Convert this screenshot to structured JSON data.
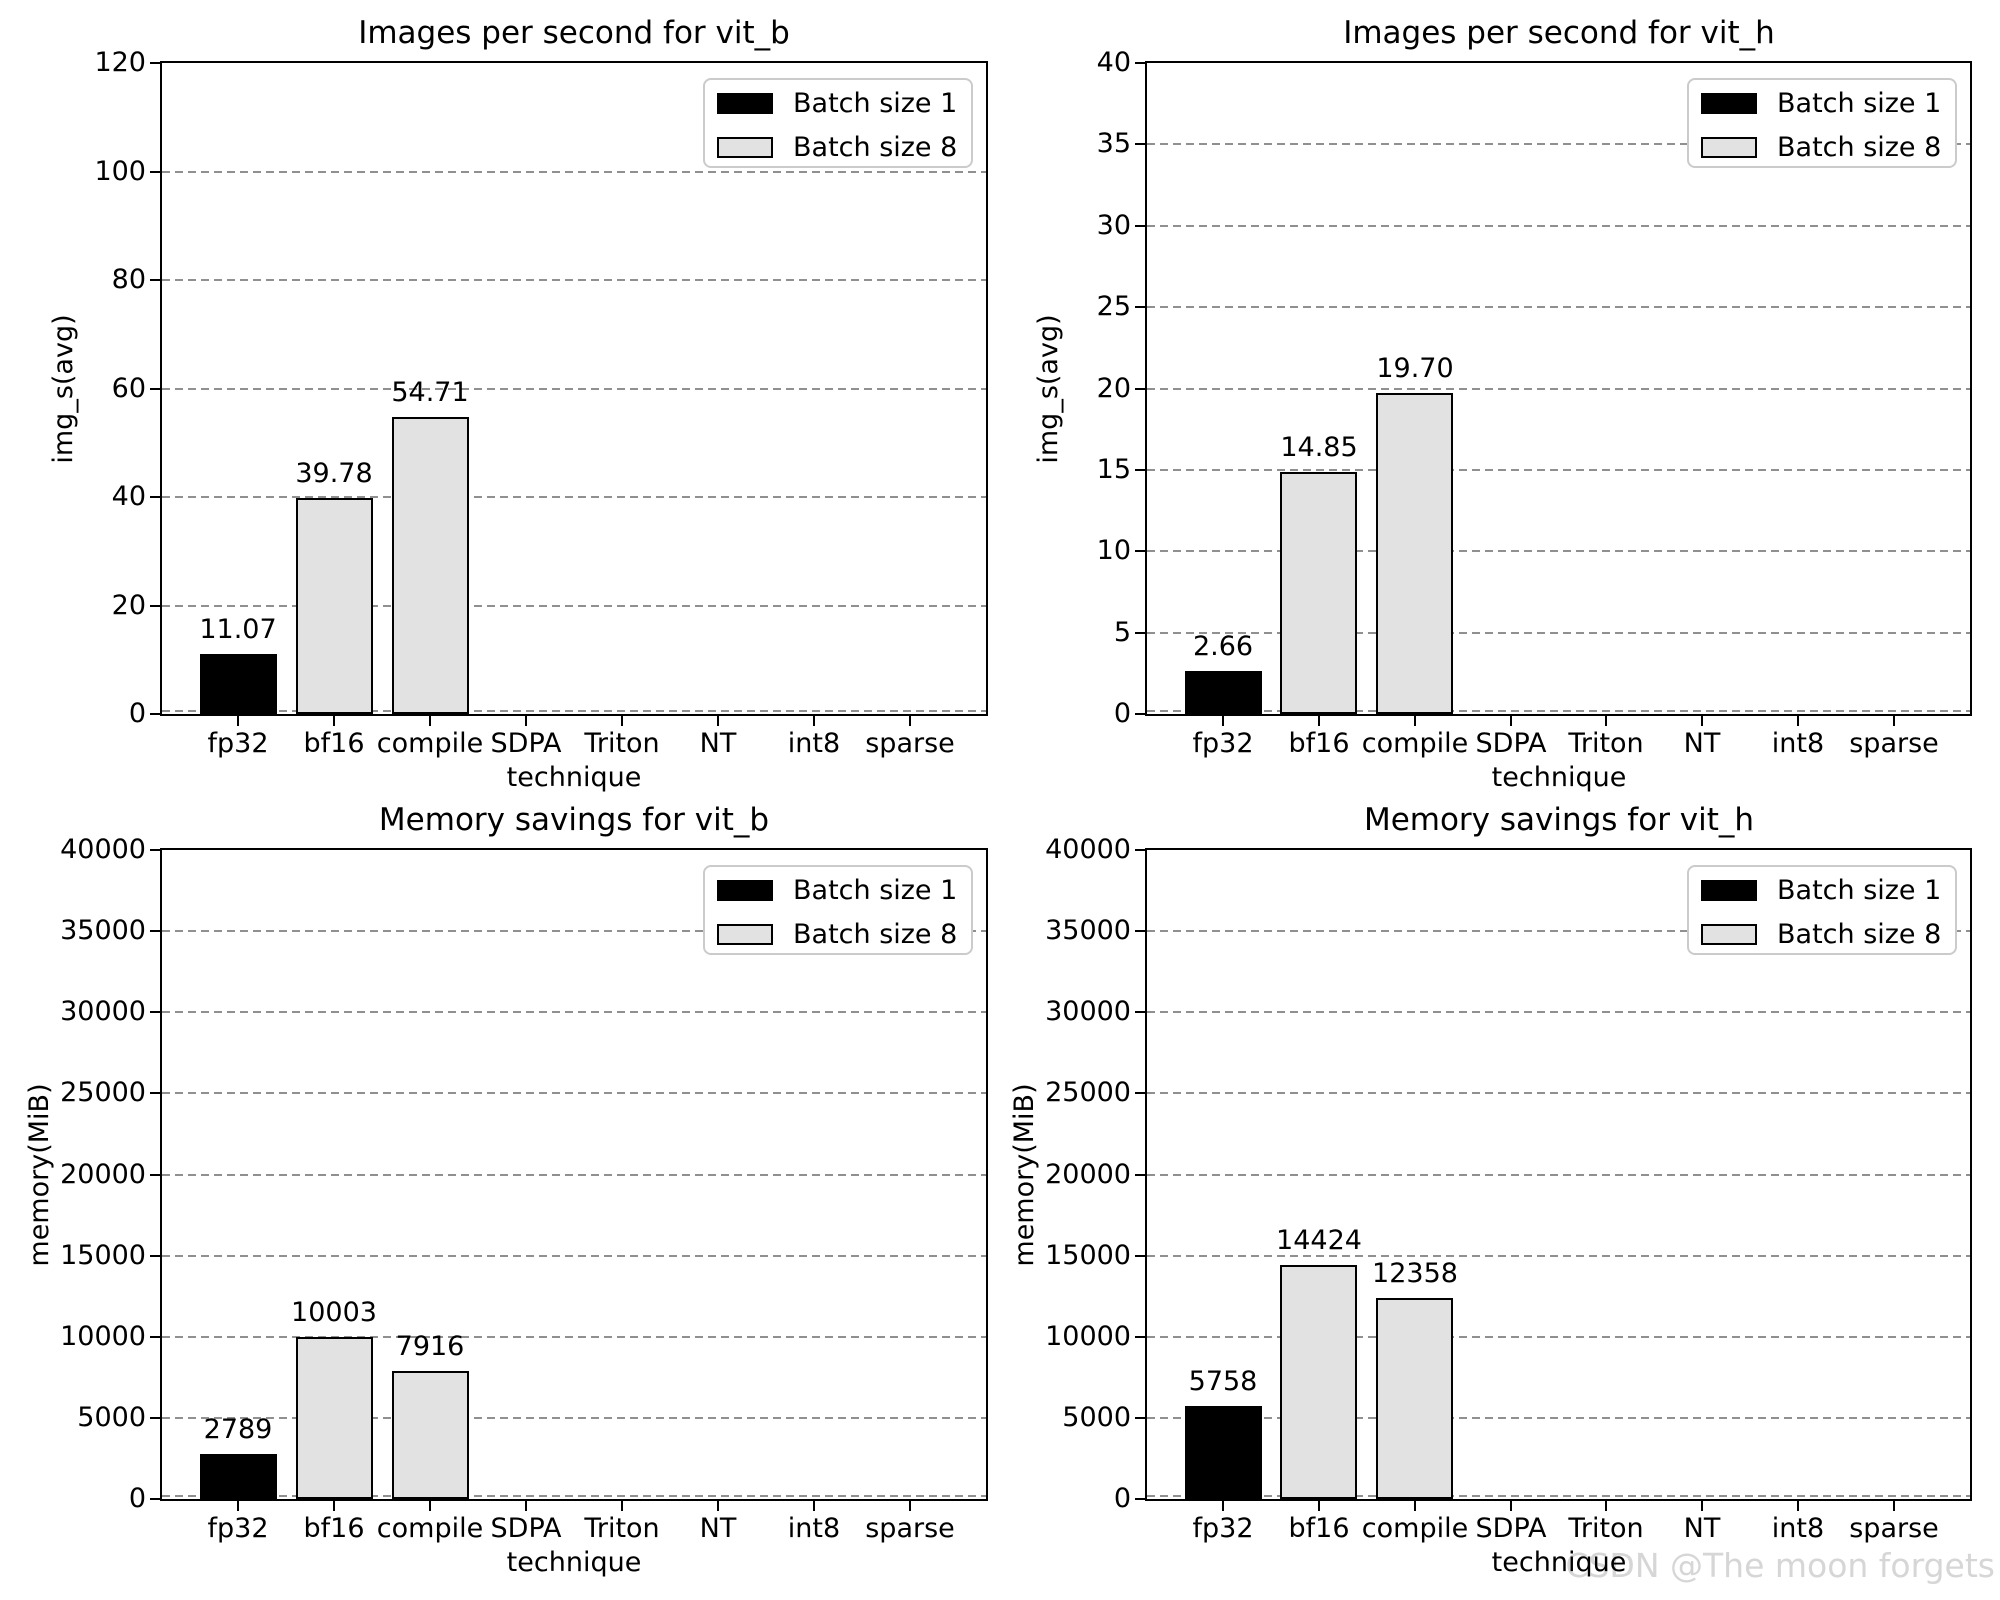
{
  "figure": {
    "watermark": "CSDN @The moon forgets"
  },
  "colors": {
    "batch1": "#000000",
    "batch8": "#e2e2e2",
    "bar_edge": "#000000",
    "grid": "#909090",
    "spine": "#000000",
    "text": "#000000",
    "legend_border": "#cbcbcb",
    "legend_background": "#ffffff",
    "watermark": "#d6d6d6",
    "background": "#ffffff"
  },
  "legend": {
    "items": [
      {
        "label": "Batch size 1",
        "series": "batch1"
      },
      {
        "label": "Batch size 8",
        "series": "batch8"
      }
    ],
    "position": "upper right"
  },
  "chart_data": [
    {
      "name": "imgs_vit_b",
      "type": "bar",
      "title": "Images per second for vit_b",
      "xlabel": "technique",
      "ylabel": "img_s(avg)",
      "categories": [
        "fp32",
        "bf16",
        "compile",
        "SDPA",
        "Triton",
        "NT",
        "int8",
        "sparse"
      ],
      "series": [
        {
          "name": "Batch size 1",
          "values": [
            11.07,
            0,
            0,
            0,
            0,
            0,
            0,
            0
          ]
        },
        {
          "name": "Batch size 8",
          "values": [
            0,
            39.78,
            54.71,
            0,
            0,
            0,
            0,
            0
          ]
        }
      ],
      "bars": [
        {
          "cat_index": 0,
          "series_index": 0,
          "value": 11.07,
          "label": "11.07"
        },
        {
          "cat_index": 1,
          "series_index": 1,
          "value": 39.78,
          "label": "39.78"
        },
        {
          "cat_index": 2,
          "series_index": 1,
          "value": 54.71,
          "label": "54.71"
        }
      ],
      "ylim": [
        0,
        120
      ],
      "ytick_step": 20,
      "grid": "horizontal-dashed",
      "legend_position": "upper right"
    },
    {
      "name": "imgs_vit_h",
      "type": "bar",
      "title": "Images per second for vit_h",
      "xlabel": "technique",
      "ylabel": "img_s(avg)",
      "categories": [
        "fp32",
        "bf16",
        "compile",
        "SDPA",
        "Triton",
        "NT",
        "int8",
        "sparse"
      ],
      "series": [
        {
          "name": "Batch size 1",
          "values": [
            2.66,
            0,
            0,
            0,
            0,
            0,
            0,
            0
          ]
        },
        {
          "name": "Batch size 8",
          "values": [
            0,
            14.85,
            19.7,
            0,
            0,
            0,
            0,
            0
          ]
        }
      ],
      "bars": [
        {
          "cat_index": 0,
          "series_index": 0,
          "value": 2.66,
          "label": "2.66"
        },
        {
          "cat_index": 1,
          "series_index": 1,
          "value": 14.85,
          "label": "14.85"
        },
        {
          "cat_index": 2,
          "series_index": 1,
          "value": 19.7,
          "label": "19.70"
        }
      ],
      "ylim": [
        0,
        40
      ],
      "ytick_step": 5,
      "grid": "horizontal-dashed",
      "legend_position": "upper right"
    },
    {
      "name": "mem_vit_b",
      "type": "bar",
      "title": "Memory savings for vit_b",
      "xlabel": "technique",
      "ylabel": "memory(MiB)",
      "categories": [
        "fp32",
        "bf16",
        "compile",
        "SDPA",
        "Triton",
        "NT",
        "int8",
        "sparse"
      ],
      "series": [
        {
          "name": "Batch size 1",
          "values": [
            2789,
            0,
            0,
            0,
            0,
            0,
            0,
            0
          ]
        },
        {
          "name": "Batch size 8",
          "values": [
            0,
            10003,
            7916,
            0,
            0,
            0,
            0,
            0
          ]
        }
      ],
      "bars": [
        {
          "cat_index": 0,
          "series_index": 0,
          "value": 2789,
          "label": "2789"
        },
        {
          "cat_index": 1,
          "series_index": 1,
          "value": 10003,
          "label": "10003"
        },
        {
          "cat_index": 2,
          "series_index": 1,
          "value": 7916,
          "label": "7916"
        }
      ],
      "ylim": [
        0,
        40000
      ],
      "ytick_step": 5000,
      "grid": "horizontal-dashed",
      "legend_position": "upper right"
    },
    {
      "name": "mem_vit_h",
      "type": "bar",
      "title": "Memory savings for vit_h",
      "xlabel": "technique",
      "ylabel": "memory(MiB)",
      "categories": [
        "fp32",
        "bf16",
        "compile",
        "SDPA",
        "Triton",
        "NT",
        "int8",
        "sparse"
      ],
      "series": [
        {
          "name": "Batch size 1",
          "values": [
            5758,
            0,
            0,
            0,
            0,
            0,
            0,
            0
          ]
        },
        {
          "name": "Batch size 8",
          "values": [
            0,
            14424,
            12358,
            0,
            0,
            0,
            0,
            0
          ]
        }
      ],
      "bars": [
        {
          "cat_index": 0,
          "series_index": 0,
          "value": 5758,
          "label": "5758"
        },
        {
          "cat_index": 1,
          "series_index": 1,
          "value": 14424,
          "label": "14424"
        },
        {
          "cat_index": 2,
          "series_index": 1,
          "value": 12358,
          "label": "12358"
        }
      ],
      "ylim": [
        0,
        40000
      ],
      "ytick_step": 5000,
      "grid": "horizontal-dashed",
      "legend_position": "upper right"
    }
  ]
}
